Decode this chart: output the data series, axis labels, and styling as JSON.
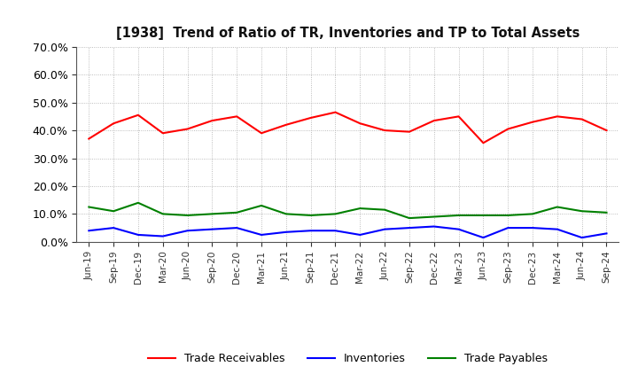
{
  "title": "[1938]  Trend of Ratio of TR, Inventories and TP to Total Assets",
  "x_labels": [
    "Jun-19",
    "Sep-19",
    "Dec-19",
    "Mar-20",
    "Jun-20",
    "Sep-20",
    "Dec-20",
    "Mar-21",
    "Jun-21",
    "Sep-21",
    "Dec-21",
    "Mar-22",
    "Jun-22",
    "Sep-22",
    "Dec-22",
    "Mar-23",
    "Jun-23",
    "Sep-23",
    "Dec-23",
    "Mar-24",
    "Jun-24",
    "Sep-24"
  ],
  "trade_receivables": [
    37.0,
    42.5,
    45.5,
    39.0,
    40.5,
    43.5,
    45.0,
    39.0,
    42.0,
    44.5,
    46.5,
    42.5,
    40.0,
    39.5,
    43.5,
    45.0,
    35.5,
    40.5,
    43.0,
    45.0,
    44.0,
    40.0
  ],
  "inventories": [
    4.0,
    5.0,
    2.5,
    2.0,
    4.0,
    4.5,
    5.0,
    2.5,
    3.5,
    4.0,
    4.0,
    2.5,
    4.5,
    5.0,
    5.5,
    4.5,
    1.5,
    5.0,
    5.0,
    4.5,
    1.5,
    3.0
  ],
  "trade_payables": [
    12.5,
    11.0,
    14.0,
    10.0,
    9.5,
    10.0,
    10.5,
    13.0,
    10.0,
    9.5,
    10.0,
    12.0,
    11.5,
    8.5,
    9.0,
    9.5,
    9.5,
    9.5,
    10.0,
    12.5,
    11.0,
    10.5
  ],
  "line_colors": {
    "trade_receivables": "#FF0000",
    "inventories": "#0000FF",
    "trade_payables": "#008000"
  },
  "ylim": [
    0,
    70
  ],
  "yticks": [
    0,
    10,
    20,
    30,
    40,
    50,
    60,
    70
  ],
  "background_color": "#FFFFFF",
  "grid_color": "#AAAAAA",
  "legend_labels": [
    "Trade Receivables",
    "Inventories",
    "Trade Payables"
  ]
}
